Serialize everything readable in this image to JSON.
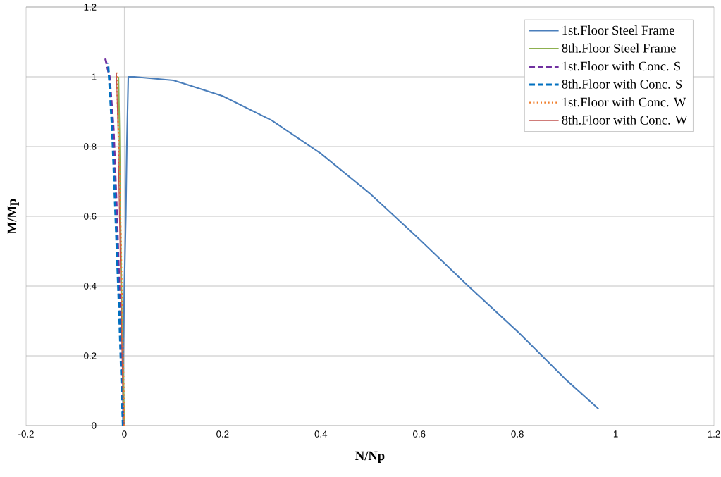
{
  "chart_data": {
    "type": "line",
    "xlabel": "N/Np",
    "ylabel": "M/Mp",
    "xlim": [
      -0.2,
      1.2
    ],
    "ylim": [
      0,
      1.2
    ],
    "xticks": [
      -0.2,
      0,
      0.2,
      0.4,
      0.6,
      0.8,
      1,
      1.2
    ],
    "yticks": [
      0,
      0.2,
      0.4,
      0.6,
      0.8,
      1,
      1.2
    ],
    "grid": "y",
    "legend": "top right",
    "marker": "none",
    "series": [
      {
        "name": "1st.Floor Steel Frame",
        "color": "#4a7ebb",
        "line_style": "solid",
        "x": [
          -0.003,
          -0.002,
          0.0,
          0.003,
          0.005,
          0.008,
          0.02,
          0.1,
          0.2,
          0.3,
          0.4,
          0.5,
          0.6,
          0.7,
          0.8,
          0.9,
          0.965
        ],
        "values": [
          0,
          0.2,
          0.4,
          0.6,
          0.8,
          1.0,
          1.0,
          0.99,
          0.945,
          0.875,
          0.78,
          0.665,
          0.535,
          0.4,
          0.27,
          0.13,
          0.048
        ]
      },
      {
        "name": "8th.Floor Steel Frame",
        "color": "#8db04f",
        "line_style": "solid",
        "x": [
          0,
          -0.005,
          -0.008,
          -0.01,
          -0.012
        ],
        "values": [
          0,
          0.3,
          0.6,
          0.85,
          1.0
        ]
      },
      {
        "name": "1st.Floor with Conc. S",
        "color": "#7030a0",
        "line_style": "dashed",
        "x": [
          -0.002,
          -0.008,
          -0.015,
          -0.022,
          -0.03,
          -0.04
        ],
        "values": [
          0,
          0.3,
          0.6,
          0.85,
          1.0,
          1.06
        ]
      },
      {
        "name": "8th.Floor with Conc. S",
        "color": "#0070c0",
        "line_style": "dashed",
        "x": [
          -0.003,
          -0.01,
          -0.018,
          -0.025,
          -0.033
        ],
        "values": [
          0,
          0.3,
          0.6,
          0.85,
          1.04
        ]
      },
      {
        "name": "1st.Floor with Conc. W",
        "color": "#f07d2a",
        "line_style": "dotted",
        "x": [
          0,
          -0.004,
          -0.008,
          -0.012,
          -0.016
        ],
        "values": [
          0,
          0.3,
          0.6,
          0.85,
          1.02
        ]
      },
      {
        "name": "8th.Floor with Conc. W",
        "color": "#c0504d",
        "line_style": "solid",
        "x": [
          -0.002,
          -0.006,
          -0.01,
          -0.013,
          -0.016
        ],
        "values": [
          0,
          0.3,
          0.6,
          0.85,
          1.01
        ]
      }
    ]
  }
}
